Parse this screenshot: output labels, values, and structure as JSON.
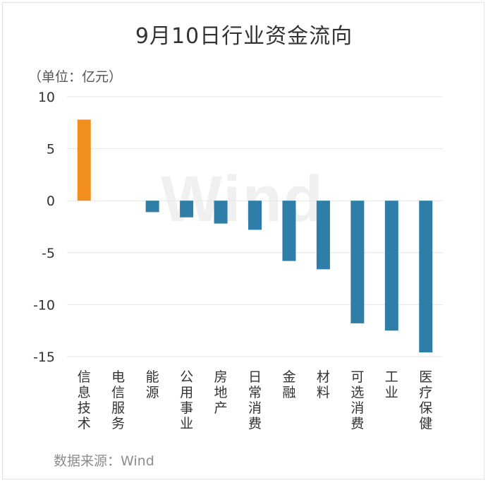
{
  "title": "9月10日行业资金流向",
  "unit": "（单位：亿元）",
  "source": "数据来源：Wind",
  "watermark": "Wind",
  "colors": {
    "positive": "#f28e1c",
    "negative": "#2e7ea8",
    "grid": "#e6e6e6",
    "text": "#333333"
  },
  "chart_data": {
    "type": "bar",
    "title": "9月10日行业资金流向",
    "ylabel": "（单位：亿元）",
    "xlabel": "",
    "categories": [
      "信息技术",
      "电信服务",
      "能源",
      "公用事业",
      "房地产",
      "日常消费",
      "金融",
      "材料",
      "可选消费",
      "工业",
      "医疗保健"
    ],
    "values": [
      7.8,
      0,
      -1.1,
      -1.6,
      -2.2,
      -2.8,
      -5.8,
      -6.6,
      -11.8,
      -12.5,
      -14.6
    ],
    "ylim": [
      -15,
      10
    ],
    "yticks": [
      10,
      5,
      0,
      -5,
      -10,
      -15
    ],
    "grid": true,
    "legend": "none"
  }
}
